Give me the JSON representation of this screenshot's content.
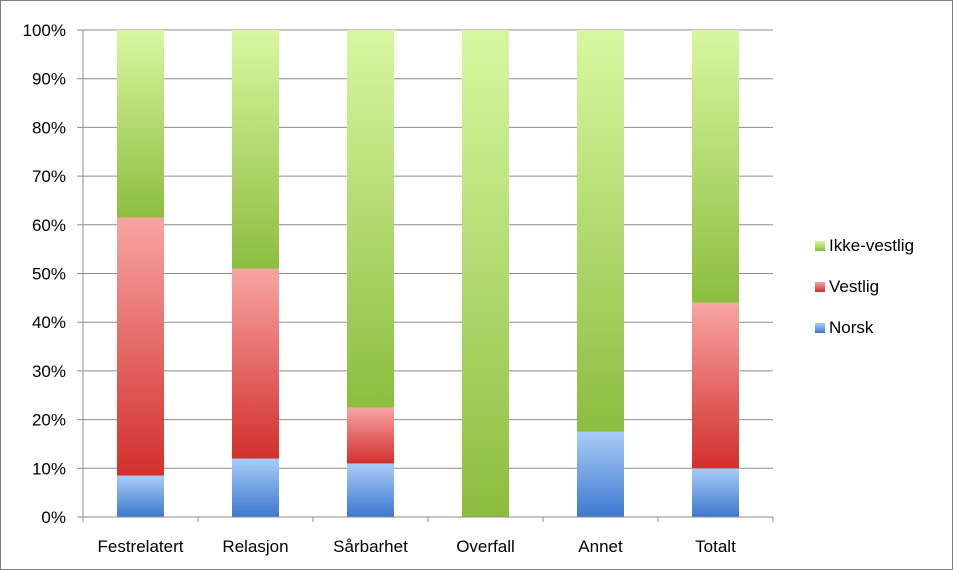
{
  "chart_data": {
    "type": "bar",
    "stacked": true,
    "percent_stacked": true,
    "title": "",
    "xlabel": "",
    "ylabel": "",
    "ylim": [
      0,
      100
    ],
    "yticks": [
      "0%",
      "10%",
      "20%",
      "30%",
      "40%",
      "50%",
      "60%",
      "70%",
      "80%",
      "90%",
      "100%"
    ],
    "categories": [
      "Festrelatert",
      "Relasjon",
      "Sårbarhet",
      "Overfall",
      "Annet",
      "Totalt"
    ],
    "series": [
      {
        "name": "Norsk",
        "values": [
          8.5,
          12,
          11,
          0,
          17.5,
          10
        ],
        "color": "#4f81d0"
      },
      {
        "name": "Vestlig",
        "values": [
          53,
          39,
          11.5,
          0,
          0,
          34
        ],
        "color": "#d9403f"
      },
      {
        "name": "Ikke-vestlig",
        "values": [
          38.5,
          49,
          77.5,
          100,
          82.5,
          56
        ],
        "color": "#93c14b"
      }
    ],
    "legend": {
      "position": "right",
      "entries": [
        "Ikke-vestlig",
        "Vestlig",
        "Norsk"
      ]
    },
    "grid": true
  }
}
